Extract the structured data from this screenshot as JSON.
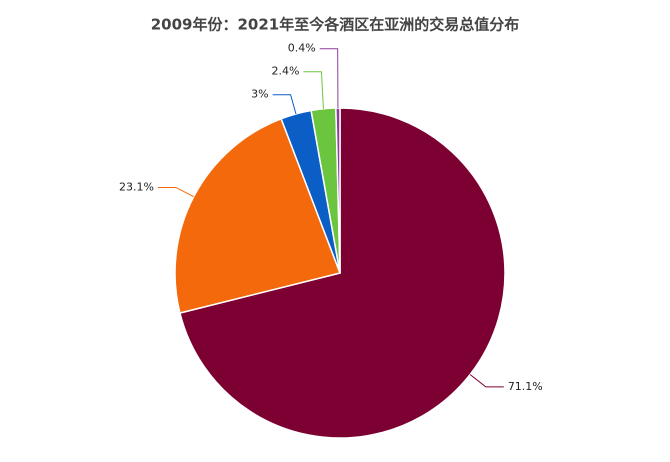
{
  "chart_data": {
    "type": "pie",
    "title": "2009年份：2021年至今各酒区在亚洲的交易总值分布",
    "values": [
      71.1,
      23.1,
      3,
      2.4,
      0.4
    ],
    "value_labels": [
      "71.1%",
      "23.1%",
      "3%",
      "2.4%",
      "0.4%"
    ],
    "colors": [
      "#7d0032",
      "#f3690b",
      "#0b5ec6",
      "#6cc53e",
      "#8d3d9b"
    ]
  }
}
